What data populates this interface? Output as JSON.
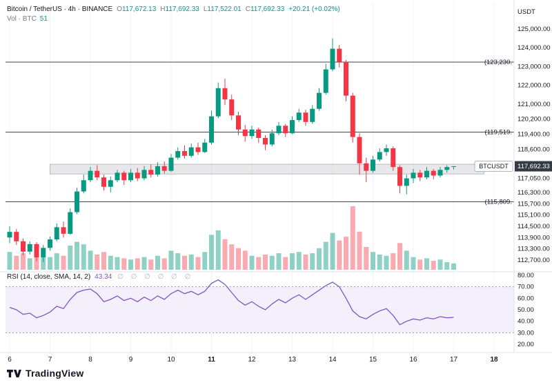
{
  "colors": {
    "up": "#089981",
    "down": "#f23645",
    "vol_up": "rgba(8,153,129,0.45)",
    "vol_down": "rgba(242,54,69,0.42)",
    "rsi_line": "#7e57c2",
    "rsi_band_fill": "#f3effb",
    "band_dash": "#9598a1",
    "inner_dash": "#e6e2f0",
    "level_line": "#434651",
    "zone_fill": "rgba(149,152,161,0.22)",
    "zone_border": "rgba(120,123,134,0.45)",
    "text_dark": "#131722",
    "text_gray": "#787b86",
    "axis_border": "#e0e3eb",
    "grid": "#f2f4f7",
    "price_tag_bg": "#363a45",
    "price_tag_text": "#ffffff",
    "symbol_tag_border": "#b2b5be"
  },
  "header": {
    "symbol_title": "Bitcoin / TetherUS · 4h · BINANCE",
    "ohlc": [
      {
        "label": "O",
        "value": "117,672.13"
      },
      {
        "label": "H",
        "value": "117,692.33"
      },
      {
        "label": "L",
        "value": "117,522.01"
      },
      {
        "label": "C",
        "value": "117,692.33"
      }
    ],
    "change": "+20.21 (+0.02%)",
    "volume_label": "Vol · BTC",
    "volume_value": "51"
  },
  "price_axis": {
    "unit": "USDT",
    "symbol_tag": "BTCUSDT",
    "last_price": 117692.33,
    "last_price_label": "117,692.33",
    "ticks": [
      {
        "price": 125000,
        "label": "125,000.00"
      },
      {
        "price": 124000,
        "label": "124,000.00"
      },
      {
        "price": 123000,
        "label": "123,000.00"
      },
      {
        "price": 122000,
        "label": "122,000.00"
      },
      {
        "price": 121000,
        "label": "121,000.00"
      },
      {
        "price": 120200,
        "label": "120,200.00"
      },
      {
        "price": 119400,
        "label": "119,400.00"
      },
      {
        "price": 118600,
        "label": "118,600.00"
      },
      {
        "price": 117050,
        "label": "117,050.00"
      },
      {
        "price": 116300,
        "label": "116,300.00"
      },
      {
        "price": 115700,
        "label": "115,700.00"
      },
      {
        "price": 115100,
        "label": "115,100.00"
      },
      {
        "price": 114500,
        "label": "114,500.00"
      },
      {
        "price": 113900,
        "label": "113,900.00"
      },
      {
        "price": 113300,
        "label": "113,300.00"
      },
      {
        "price": 112700,
        "label": "112,700.00"
      }
    ]
  },
  "time_axis": {
    "days": [
      {
        "label": "6",
        "bold": false
      },
      {
        "label": "7",
        "bold": false
      },
      {
        "label": "8",
        "bold": false
      },
      {
        "label": "9",
        "bold": false
      },
      {
        "label": "10",
        "bold": false
      },
      {
        "label": "11",
        "bold": true
      },
      {
        "label": "12",
        "bold": false
      },
      {
        "label": "13",
        "bold": false
      },
      {
        "label": "14",
        "bold": false
      },
      {
        "label": "15",
        "bold": false
      },
      {
        "label": "16",
        "bold": false
      },
      {
        "label": "17",
        "bold": false
      },
      {
        "label": "18",
        "bold": true
      }
    ]
  },
  "levels": [
    {
      "price": 123230,
      "label": "(123,230."
    },
    {
      "price": 119519,
      "label": "(119,519."
    },
    {
      "price": 115809,
      "label": "(115,809."
    }
  ],
  "zone": {
    "price_top": 117800,
    "price_bottom": 117280,
    "day_start": 7.0,
    "day_end": 17.75
  },
  "rsi": {
    "title": "RSI (14, close, SMA, 14, 2)",
    "value": "43.34",
    "empty_markers": "∅ ∅ ∅ ∅ ∅ ∅",
    "upper_band": 70,
    "lower_band": 30,
    "inner_lines": [
      60,
      50,
      40
    ],
    "ticks": [
      {
        "v": 80,
        "label": "80.00"
      },
      {
        "v": 70,
        "label": "70.00"
      },
      {
        "v": 60,
        "label": "60.00"
      },
      {
        "v": 50,
        "label": "50.00"
      },
      {
        "v": 40,
        "label": "40.00"
      },
      {
        "v": 30,
        "label": "30.00"
      },
      {
        "v": 20,
        "label": "20.00"
      }
    ]
  },
  "branding": {
    "name": "TradingView"
  },
  "chart_data": {
    "type": "candlestick",
    "title": "Bitcoin / TetherUS · 4h · BINANCE",
    "ylabel": "USDT",
    "ylim": [
      112400,
      125600
    ],
    "grid": "faint",
    "legend_position": "top-left",
    "x_axis": {
      "start_day": 6,
      "end_day": 18,
      "candles_per_day": 6
    },
    "overlays": {
      "horizontal_levels": [
        123230,
        119519,
        115809
      ],
      "zone_price_range": [
        117280,
        117800
      ]
    },
    "rsi_settings": {
      "length": 14,
      "source": "close",
      "smoothing": "SMA 14",
      "ylim": [
        20,
        80
      ],
      "bands": [
        30,
        70
      ],
      "last_value": 43.34
    },
    "series": {
      "ohlcv_format": [
        "open",
        "high",
        "low",
        "close",
        "volume_rel"
      ],
      "ohlcv": [
        [
          113900,
          114500,
          113600,
          114200,
          28
        ],
        [
          114200,
          114350,
          113500,
          113700,
          22
        ],
        [
          113700,
          113850,
          112950,
          113150,
          26
        ],
        [
          113150,
          113700,
          113000,
          113550,
          18
        ],
        [
          113550,
          113650,
          112650,
          112850,
          30
        ],
        [
          112850,
          113500,
          112600,
          113350,
          24
        ],
        [
          113350,
          113950,
          113200,
          113800,
          20
        ],
        [
          113800,
          114650,
          113700,
          114450,
          26
        ],
        [
          114450,
          114750,
          113900,
          114100,
          22
        ],
        [
          114100,
          115450,
          114050,
          115250,
          38
        ],
        [
          115250,
          116550,
          115150,
          116350,
          44
        ],
        [
          116350,
          117250,
          116250,
          116950,
          40
        ],
        [
          116950,
          117650,
          116850,
          117450,
          30
        ],
        [
          117450,
          117750,
          116950,
          117100,
          24
        ],
        [
          117100,
          117250,
          116400,
          116600,
          28
        ],
        [
          116600,
          117150,
          116300,
          116950,
          22
        ],
        [
          116950,
          117500,
          116850,
          117350,
          20
        ],
        [
          117350,
          117450,
          116700,
          116950,
          18
        ],
        [
          116950,
          117550,
          116850,
          117350,
          16
        ],
        [
          117350,
          117600,
          116900,
          117050,
          18
        ],
        [
          117050,
          117700,
          116950,
          117500,
          20
        ],
        [
          117500,
          117800,
          117100,
          117250,
          16
        ],
        [
          117250,
          117900,
          117150,
          117700,
          22
        ],
        [
          117700,
          117950,
          117300,
          117450,
          18
        ],
        [
          117450,
          118350,
          117400,
          118150,
          30
        ],
        [
          118150,
          118700,
          118050,
          118500,
          26
        ],
        [
          118500,
          118800,
          118100,
          118250,
          22
        ],
        [
          118250,
          118900,
          118150,
          118700,
          24
        ],
        [
          118700,
          118950,
          118300,
          118450,
          20
        ],
        [
          118450,
          119150,
          118400,
          118950,
          28
        ],
        [
          118950,
          120650,
          118850,
          120350,
          55
        ],
        [
          120350,
          122150,
          120250,
          121850,
          62
        ],
        [
          121850,
          122350,
          120950,
          121250,
          48
        ],
        [
          121250,
          121500,
          120150,
          120400,
          40
        ],
        [
          120400,
          120600,
          119350,
          119650,
          34
        ],
        [
          119650,
          119900,
          119000,
          119300,
          30
        ],
        [
          119300,
          119850,
          119150,
          119650,
          22
        ],
        [
          119650,
          119750,
          118950,
          119200,
          20
        ],
        [
          119200,
          119350,
          118550,
          118850,
          24
        ],
        [
          118850,
          119650,
          118750,
          119450,
          22
        ],
        [
          119450,
          120050,
          119350,
          119850,
          26
        ],
        [
          119850,
          119950,
          119250,
          119450,
          20
        ],
        [
          119450,
          120350,
          119400,
          120150,
          26
        ],
        [
          120150,
          120750,
          120050,
          120550,
          28
        ],
        [
          120550,
          120700,
          119850,
          120050,
          24
        ],
        [
          120050,
          120950,
          119950,
          120750,
          26
        ],
        [
          120750,
          121850,
          120650,
          121600,
          34
        ],
        [
          121600,
          123150,
          121500,
          122850,
          44
        ],
        [
          122850,
          124500,
          122750,
          123950,
          58
        ],
        [
          123950,
          124150,
          122950,
          123250,
          46
        ],
        [
          123250,
          123350,
          121150,
          121450,
          52
        ],
        [
          121450,
          121600,
          118950,
          119250,
          100
        ],
        [
          119250,
          119450,
          117250,
          117850,
          60
        ],
        [
          117850,
          118150,
          116850,
          117450,
          36
        ],
        [
          117450,
          118250,
          117350,
          118050,
          28
        ],
        [
          118050,
          118650,
          117950,
          118450,
          24
        ],
        [
          118450,
          118850,
          118250,
          118650,
          22
        ],
        [
          118650,
          118750,
          117450,
          117650,
          26
        ],
        [
          117650,
          117750,
          116250,
          116650,
          42
        ],
        [
          116650,
          117250,
          116200,
          117050,
          30
        ],
        [
          117050,
          117550,
          116800,
          117350,
          20
        ],
        [
          117350,
          117500,
          116900,
          117100,
          16
        ],
        [
          117100,
          117650,
          117000,
          117450,
          18
        ],
        [
          117450,
          117550,
          117000,
          117200,
          14
        ],
        [
          117200,
          117650,
          117100,
          117500,
          16
        ],
        [
          117500,
          117750,
          117350,
          117650,
          12
        ],
        [
          117672.13,
          117692.33,
          117522.01,
          117692.33,
          10
        ]
      ],
      "rsi": [
        52,
        50,
        46,
        47,
        43,
        45,
        48,
        53,
        51,
        59,
        65,
        67,
        68,
        64,
        57,
        59,
        62,
        58,
        60,
        57,
        61,
        58,
        62,
        59,
        64,
        67,
        64,
        66,
        63,
        66,
        73,
        76,
        72,
        65,
        58,
        54,
        57,
        53,
        50,
        55,
        59,
        56,
        60,
        63,
        59,
        63,
        67,
        71,
        74,
        70,
        60,
        49,
        44,
        42,
        46,
        49,
        51,
        45,
        37,
        40,
        42,
        41,
        43,
        42,
        44,
        43,
        43.34
      ]
    }
  }
}
